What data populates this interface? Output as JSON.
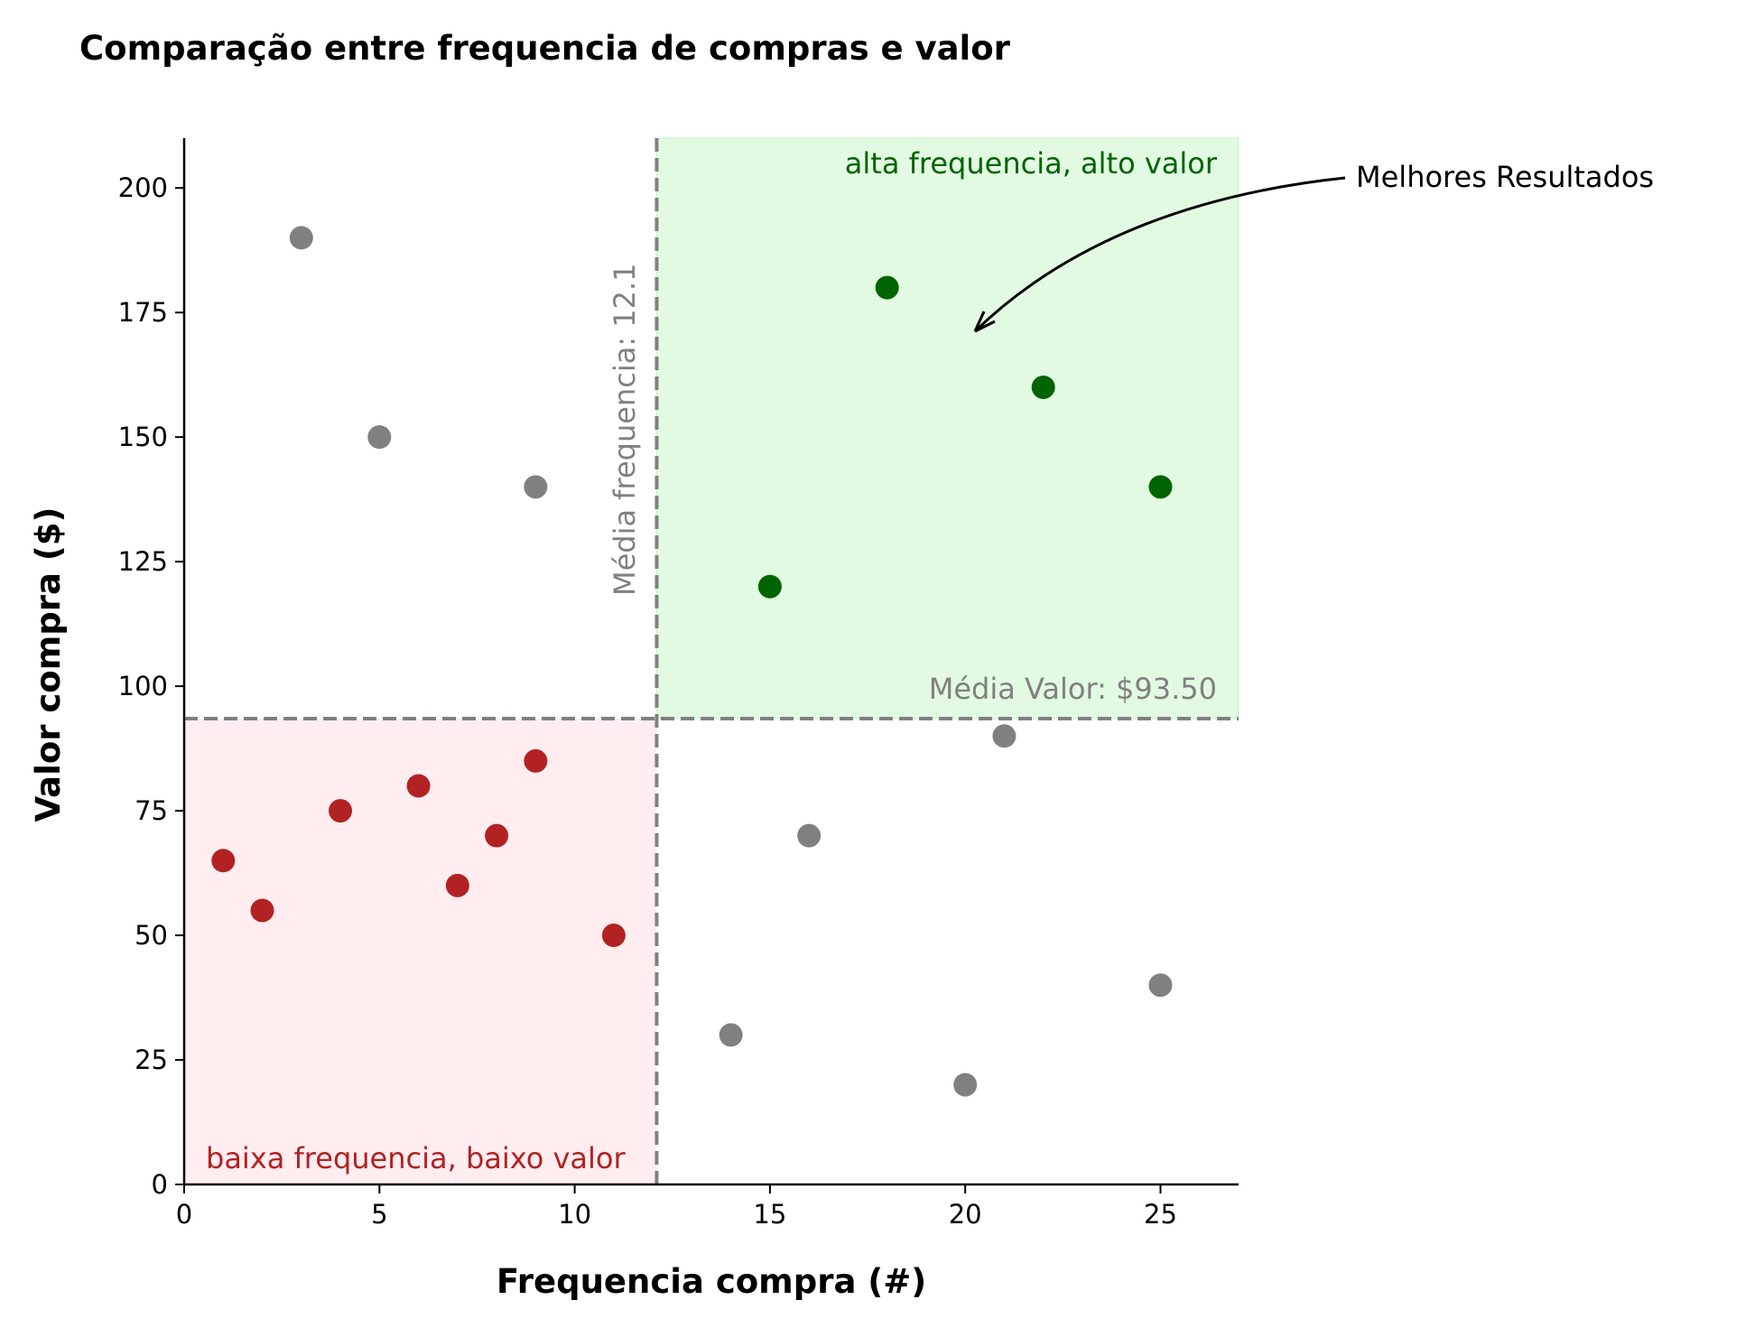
{
  "chart_data": {
    "type": "scatter",
    "title": "Comparação entre frequencia de compras e valor",
    "xlabel": "Frequencia compra (#)",
    "ylabel": "Valor compra ($)",
    "xlim": [
      0,
      27
    ],
    "ylim": [
      0,
      210
    ],
    "x_ticks": [
      0,
      5,
      10,
      15,
      20,
      25
    ],
    "y_ticks": [
      0,
      25,
      50,
      75,
      100,
      125,
      150,
      175,
      200
    ],
    "grid": false,
    "points": [
      {
        "x": 1,
        "y": 65,
        "group": "low"
      },
      {
        "x": 2,
        "y": 55,
        "group": "low"
      },
      {
        "x": 3,
        "y": 190,
        "group": "other"
      },
      {
        "x": 4,
        "y": 75,
        "group": "low"
      },
      {
        "x": 5,
        "y": 150,
        "group": "other"
      },
      {
        "x": 6,
        "y": 80,
        "group": "low"
      },
      {
        "x": 7,
        "y": 60,
        "group": "low"
      },
      {
        "x": 8,
        "y": 70,
        "group": "low"
      },
      {
        "x": 9,
        "y": 85,
        "group": "low"
      },
      {
        "x": 9,
        "y": 140,
        "group": "other"
      },
      {
        "x": 11,
        "y": 50,
        "group": "low"
      },
      {
        "x": 14,
        "y": 30,
        "group": "other"
      },
      {
        "x": 15,
        "y": 120,
        "group": "high"
      },
      {
        "x": 16,
        "y": 70,
        "group": "other"
      },
      {
        "x": 18,
        "y": 180,
        "group": "high"
      },
      {
        "x": 20,
        "y": 20,
        "group": "other"
      },
      {
        "x": 21,
        "y": 90,
        "group": "other"
      },
      {
        "x": 22,
        "y": 160,
        "group": "high"
      },
      {
        "x": 25,
        "y": 140,
        "group": "high"
      },
      {
        "x": 25,
        "y": 40,
        "group": "other"
      }
    ],
    "mean_frequency": 12.1,
    "mean_value": 93.5,
    "mean_frequency_label": "Média frequencia: 12.1",
    "mean_value_label": "Média Valor: $93.50",
    "high_quadrant_label": "alta frequencia, alto valor",
    "low_quadrant_label": "baixa frequencia, baixo valor",
    "annotation": {
      "text": "Melhores Resultados",
      "point_x": 20,
      "point_y": 171
    },
    "colors": {
      "high": "#006400",
      "low": "#b22222",
      "other": "#808080",
      "high_region": "#e2fae2",
      "low_region": "#ffedf0",
      "mean_line": "#808080"
    }
  }
}
